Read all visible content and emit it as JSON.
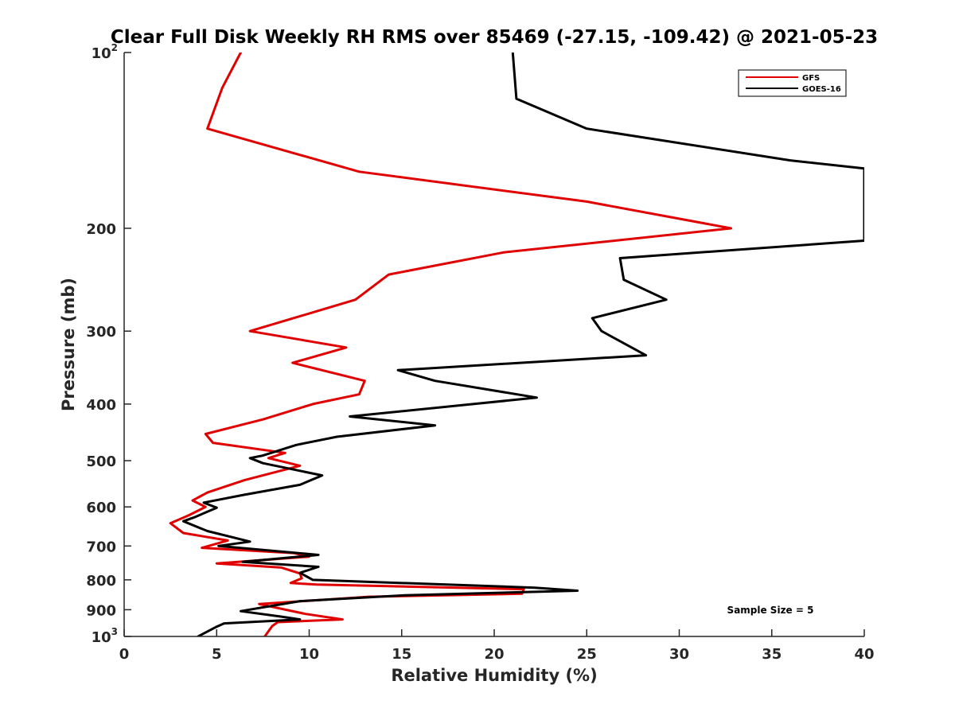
{
  "chart_data": {
    "type": "line",
    "title": "Clear Full Disk Weekly RH RMS over 85469 (-27.15, -109.42) @ 2021-05-23",
    "xlabel": "Relative Humidity (%)",
    "ylabel": "Pressure (mb)",
    "xlim": [
      0,
      40
    ],
    "ylim": [
      100,
      1000
    ],
    "y_scale": "log",
    "y_reversed": true,
    "x_ticks": [
      0,
      5,
      10,
      15,
      20,
      25,
      30,
      35,
      40
    ],
    "x_tick_labels": [
      "0",
      "5",
      "10",
      "15",
      "20",
      "25",
      "30",
      "35",
      "40"
    ],
    "y_ticks": [
      200,
      300,
      400,
      500,
      600,
      700,
      800,
      900
    ],
    "y_tick_labels": [
      "200",
      "300",
      "400",
      "500",
      "600",
      "700",
      "800",
      "900"
    ],
    "y_top_label": {
      "base": "10",
      "exp": "2"
    },
    "y_bottom_label": {
      "base": "10",
      "exp": "3"
    },
    "grid": false,
    "legend_position": "top-right",
    "annotation": "Sample Size = 5",
    "series": [
      {
        "name": "GFS",
        "color": "#e00000",
        "points": [
          [
            6.3,
            100
          ],
          [
            5.3,
            115
          ],
          [
            4.5,
            135
          ],
          [
            12.7,
            160
          ],
          [
            25,
            180
          ],
          [
            32.8,
            200
          ],
          [
            20.5,
            220
          ],
          [
            14.3,
            240
          ],
          [
            12.5,
            265
          ],
          [
            6.8,
            300
          ],
          [
            12,
            320
          ],
          [
            9.1,
            340
          ],
          [
            13,
            365
          ],
          [
            12.7,
            385
          ],
          [
            10.2,
            400
          ],
          [
            7.5,
            425
          ],
          [
            4.4,
            450
          ],
          [
            4.8,
            466
          ],
          [
            8.7,
            485
          ],
          [
            7.8,
            495
          ],
          [
            9.5,
            510
          ],
          [
            6.5,
            540
          ],
          [
            4.5,
            567
          ],
          [
            3.7,
            585
          ],
          [
            4.4,
            600
          ],
          [
            3.5,
            620
          ],
          [
            2.5,
            640
          ],
          [
            3.2,
            665
          ],
          [
            5.6,
            685
          ],
          [
            4.2,
            705
          ],
          [
            9.2,
            720
          ],
          [
            10,
            730
          ],
          [
            5,
            750
          ],
          [
            8.5,
            762
          ],
          [
            9.5,
            780
          ],
          [
            9.6,
            795
          ],
          [
            9,
            810
          ],
          [
            10.4,
            815
          ],
          [
            21.6,
            830
          ],
          [
            21.5,
            845
          ],
          [
            13.2,
            855
          ],
          [
            7.3,
            880
          ],
          [
            9.8,
            915
          ],
          [
            11.8,
            935
          ],
          [
            8.3,
            945
          ],
          [
            8,
            960
          ],
          [
            7.6,
            1000
          ]
        ]
      },
      {
        "name": "GOES-16",
        "color": "#000000",
        "points": [
          [
            21,
            100
          ],
          [
            21.2,
            120
          ],
          [
            25,
            135
          ],
          [
            36,
            153
          ],
          [
            40,
            158
          ],
          [
            40,
            210
          ],
          [
            26.8,
            225
          ],
          [
            27,
            245
          ],
          [
            29.3,
            265
          ],
          [
            25.3,
            285
          ],
          [
            25.8,
            300
          ],
          [
            28.2,
            330
          ],
          [
            14.8,
            350
          ],
          [
            16.8,
            365
          ],
          [
            22.3,
            390
          ],
          [
            12.2,
            420
          ],
          [
            16.8,
            435
          ],
          [
            11.5,
            455
          ],
          [
            9.3,
            470
          ],
          [
            7.5,
            490
          ],
          [
            6.8,
            495
          ],
          [
            7.5,
            505
          ],
          [
            10.7,
            530
          ],
          [
            9.5,
            550
          ],
          [
            6.5,
            572
          ],
          [
            4.3,
            590
          ],
          [
            5,
            602
          ],
          [
            3.8,
            625
          ],
          [
            3.2,
            635
          ],
          [
            4.5,
            660
          ],
          [
            6.8,
            688
          ],
          [
            5.1,
            700
          ],
          [
            10.5,
            725
          ],
          [
            6.4,
            745
          ],
          [
            10.5,
            760
          ],
          [
            9.5,
            778
          ],
          [
            10.2,
            800
          ],
          [
            22.2,
            825
          ],
          [
            24.5,
            835
          ],
          [
            15.2,
            850
          ],
          [
            9.5,
            870
          ],
          [
            6.3,
            905
          ],
          [
            8.5,
            925
          ],
          [
            9.5,
            935
          ],
          [
            5.4,
            950
          ],
          [
            5,
            962
          ],
          [
            4,
            1000
          ]
        ]
      }
    ]
  }
}
